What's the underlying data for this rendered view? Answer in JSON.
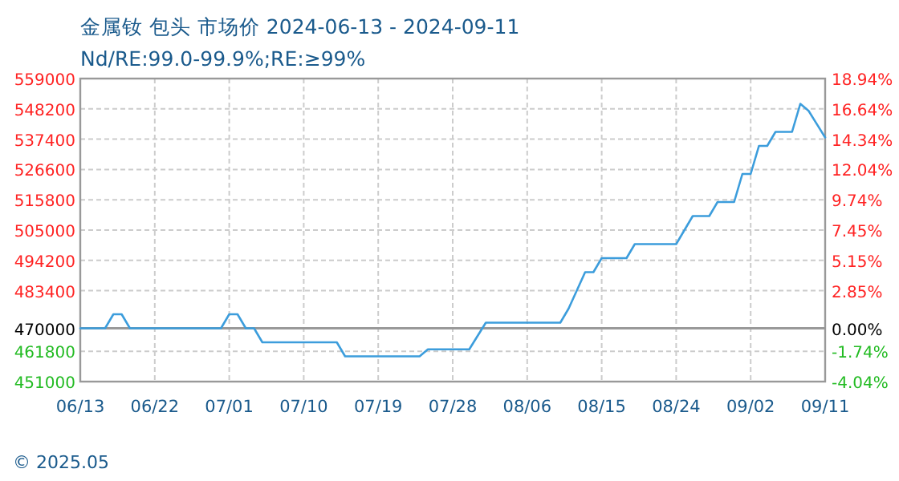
{
  "chart_data": {
    "type": "line",
    "title": "金属钕 包头 市场价 2024-06-13 - 2024-09-11",
    "subtitle": "Nd/RE:99.0-99.9%;RE:≥99%",
    "annotations": [
      "© 2025.05"
    ],
    "series": [
      {
        "color": "#3c9ddc",
        "x": [
          "--06-13",
          "--06-16",
          "--06-17",
          "--06-18",
          "--06-19",
          "--06-30",
          "--07-01",
          "--07-02",
          "--07-03",
          "--07-04",
          "--07-05",
          "--07-14",
          "--07-15",
          "--07-24",
          "--07-25",
          "--07-30",
          "--08-01",
          "--08-10",
          "--08-11",
          "--08-13",
          "--08-14",
          "--08-15",
          "--08-18",
          "--08-19",
          "--08-24",
          "--08-26",
          "--08-28",
          "--08-29",
          "--08-31",
          "--09-01",
          "--09-02",
          "--09-03",
          "--09-04",
          "--09-05",
          "--09-07",
          "--09-08",
          "--09-09",
          "--09-11"
        ],
        "values": [
          470000,
          470000,
          475000,
          475000,
          470000,
          470000,
          475000,
          475000,
          470000,
          470000,
          465000,
          465000,
          460000,
          460000,
          462500,
          462500,
          472000,
          472000,
          477000,
          490000,
          490000,
          495000,
          495000,
          500000,
          500000,
          510000,
          510000,
          515000,
          515000,
          525000,
          525000,
          535000,
          535000,
          540000,
          540000,
          550000,
          547500,
          538000
        ]
      }
    ],
    "xlim": [
      "--06-13",
      "--09-11"
    ],
    "xticks": [
      {
        "value": "--06-13",
        "label": "06/13"
      },
      {
        "value": "--06-22",
        "label": "06/22"
      },
      {
        "value": "--07-01",
        "label": "07/01"
      },
      {
        "value": "--07-10",
        "label": "07/10"
      },
      {
        "value": "--07-19",
        "label": "07/19"
      },
      {
        "value": "--07-28",
        "label": "07/28"
      },
      {
        "value": "--08-06",
        "label": "08/06"
      },
      {
        "value": "--08-15",
        "label": "08/15"
      },
      {
        "value": "--08-24",
        "label": "08/24"
      },
      {
        "value": "--09-02",
        "label": "09/02"
      },
      {
        "value": "--09-11",
        "label": "09/11"
      }
    ],
    "ylim": [
      451000,
      559000
    ],
    "yticks": [
      559000,
      548200,
      537400,
      526600,
      515800,
      505000,
      494200,
      483400,
      470000,
      461800,
      451000
    ],
    "y2lim": [
      -4.04,
      18.94
    ],
    "y2ticks": [
      {
        "value": 18.94,
        "label": "18.94%"
      },
      {
        "value": 16.64,
        "label": "16.64%"
      },
      {
        "value": 14.34,
        "label": "14.34%"
      },
      {
        "value": 12.04,
        "label": "12.04%"
      },
      {
        "value": 9.74,
        "label": "9.74%"
      },
      {
        "value": 7.45,
        "label": "7.45%"
      },
      {
        "value": 5.15,
        "label": "5.15%"
      },
      {
        "value": 2.85,
        "label": "2.85%"
      },
      {
        "value": 0,
        "label": "0.00%"
      },
      {
        "value": -1.74,
        "label": "-1.74%"
      },
      {
        "value": -4.04,
        "label": "-4.04%"
      }
    ],
    "ref_lines": [
      {
        "axis": "y",
        "value": 470000,
        "color": "#999999",
        "line_style": "solid"
      }
    ],
    "grid": true,
    "marker": "none",
    "line_style": "solid"
  }
}
